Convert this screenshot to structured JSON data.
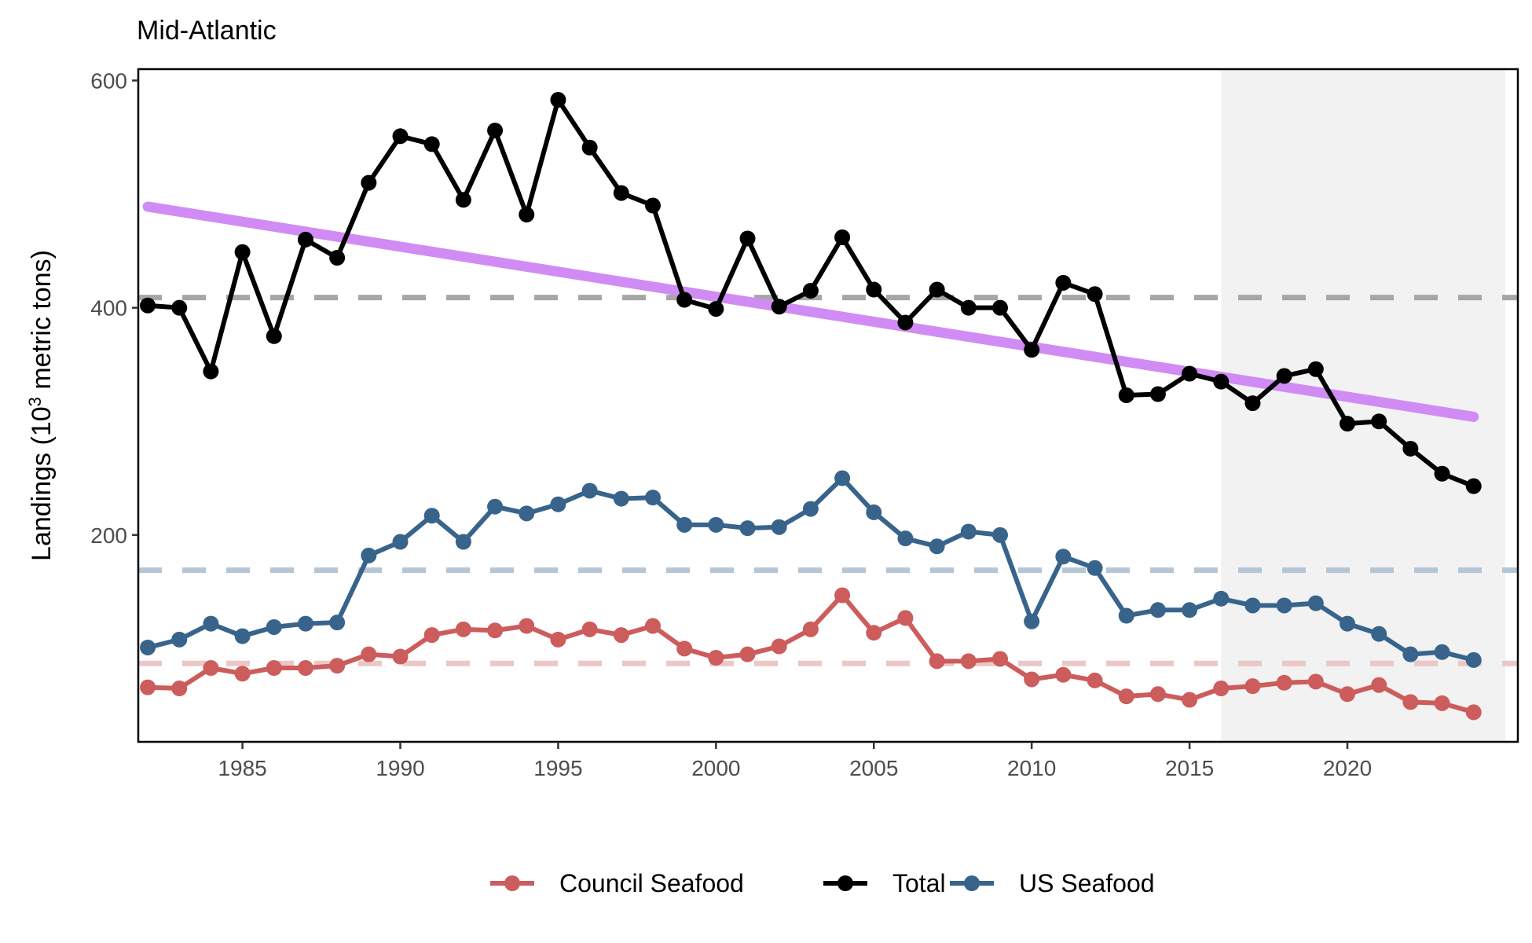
{
  "chart_data": {
    "type": "line",
    "title": "Mid-Atlantic",
    "xlabel": "",
    "ylabel": "Landings (10^3 metric tons)",
    "ylabel_parts": {
      "pre": "Landings (10",
      "sup": "3",
      "post": " metric tons)"
    },
    "xlim": [
      1981.7,
      2025.4
    ],
    "ylim": [
      18,
      610
    ],
    "xticks": [
      1985,
      1990,
      1995,
      2000,
      2005,
      2010,
      2015,
      2020
    ],
    "yticks": [
      200,
      400,
      600
    ],
    "grid": false,
    "legend_position": "bottom",
    "shaded_region": {
      "x_start": 2016,
      "x_end": 2025,
      "color": "#f2f2f2"
    },
    "x": [
      1982,
      1983,
      1984,
      1985,
      1986,
      1987,
      1988,
      1989,
      1990,
      1991,
      1992,
      1993,
      1994,
      1995,
      1996,
      1997,
      1998,
      1999,
      2000,
      2001,
      2002,
      2003,
      2004,
      2005,
      2006,
      2007,
      2008,
      2009,
      2010,
      2011,
      2012,
      2013,
      2014,
      2015,
      2016,
      2017,
      2018,
      2019,
      2020,
      2021,
      2022,
      2023,
      2024
    ],
    "series": [
      {
        "name": "Council Seafood",
        "color": "#cd5c5c",
        "mean": 87,
        "values": [
          66,
          65,
          83,
          78,
          83,
          83,
          85,
          95,
          93,
          112,
          117,
          116,
          120,
          108,
          117,
          112,
          120,
          100,
          92,
          95,
          102,
          117,
          147,
          114,
          127,
          89,
          89,
          91,
          73,
          77,
          72,
          58,
          60,
          55,
          65,
          67,
          70,
          71,
          60,
          68,
          53,
          52,
          44
        ]
      },
      {
        "name": "Total",
        "color": "#000000",
        "mean": 409,
        "values": [
          402,
          400,
          344,
          449,
          375,
          460,
          444,
          510,
          551,
          544,
          495,
          556,
          482,
          583,
          541,
          501,
          490,
          407,
          399,
          461,
          401,
          415,
          462,
          416,
          387,
          416,
          400,
          400,
          363,
          422,
          412,
          323,
          324,
          342,
          335,
          316,
          340,
          346,
          298,
          300,
          276,
          254,
          243
        ]
      },
      {
        "name": "US Seafood",
        "color": "#38648c",
        "mean": 169,
        "values": [
          101,
          108,
          122,
          111,
          119,
          122,
          123,
          182,
          194,
          217,
          194,
          225,
          219,
          227,
          239,
          232,
          233,
          209,
          209,
          206,
          207,
          223,
          250,
          220,
          197,
          190,
          203,
          200,
          124,
          181,
          171,
          129,
          134,
          134,
          144,
          138,
          138,
          140,
          122,
          113,
          95,
          97,
          90
        ]
      }
    ],
    "trend": {
      "series": "Total",
      "color": "#d08cf4",
      "x": [
        1982,
        2024
      ],
      "y": [
        489,
        304
      ]
    },
    "mean_line_colors": {
      "Council Seafood": "#ebc7c7",
      "Total": "#a6a6a6",
      "US Seafood": "#b5c6d6"
    }
  }
}
